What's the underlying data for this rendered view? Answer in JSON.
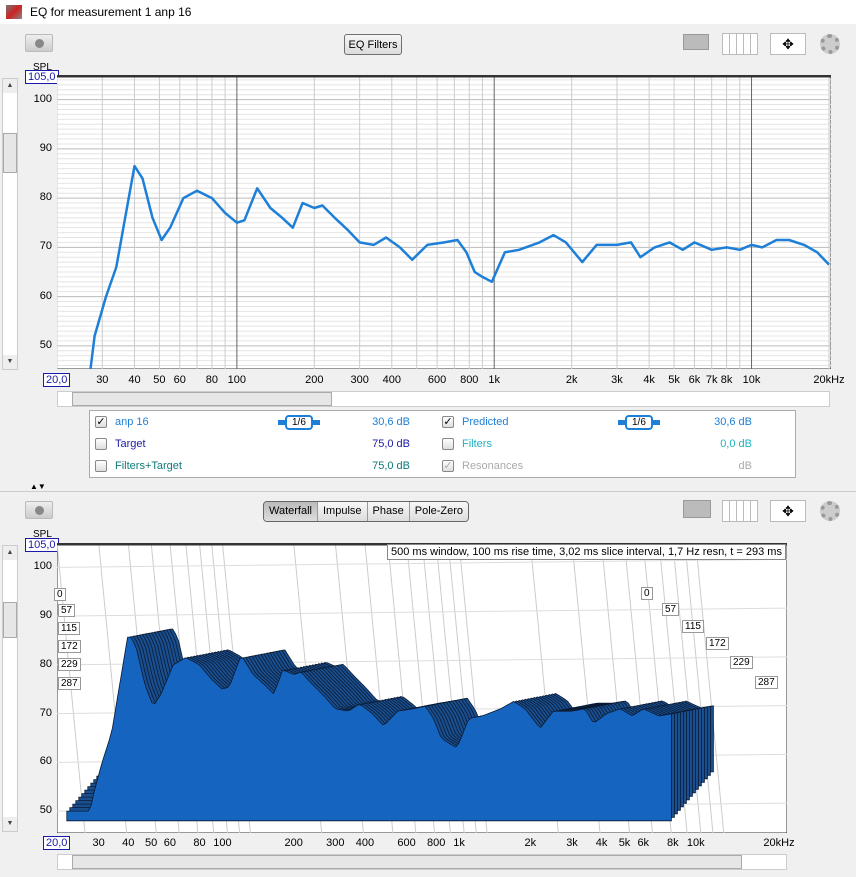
{
  "window": {
    "title": "EQ for measurement 1 anp 16"
  },
  "top_panel": {
    "eq_filters_button": "EQ Filters",
    "y_unit": "SPL",
    "y_max_value": "105,0",
    "x_min_value": "20,0",
    "y_ticks": [
      "100",
      "90",
      "80",
      "70",
      "60",
      "50"
    ],
    "x_ticks": [
      "30",
      "40",
      "50",
      "60",
      "80",
      "100",
      "200",
      "300",
      "400",
      "600",
      "800",
      "1k",
      "2k",
      "3k",
      "4k",
      "5k",
      "6k",
      "7k",
      "8k",
      "10k",
      "20kHz"
    ]
  },
  "legend": {
    "rows": [
      {
        "label": "anp 16",
        "checked": true,
        "smoothing": "1/6",
        "value": "30,6 dB",
        "color": "#1e7fd8"
      },
      {
        "label": "Target",
        "checked": false,
        "value": "75,0 dB",
        "color": "#1a1aa8"
      },
      {
        "label": "Filters+Target",
        "checked": false,
        "value": "75,0 dB",
        "color": "#0d7a7a"
      },
      {
        "label": "Predicted",
        "checked": true,
        "smoothing": "1/6",
        "value": "30,6 dB",
        "color": "#1e7fd8"
      },
      {
        "label": "Filters",
        "checked": false,
        "value": "0,0 dB",
        "color": "#20b0c0"
      },
      {
        "label": "Resonances",
        "checked": true,
        "disabled": true,
        "value": "dB",
        "color": "#aaaaaa"
      }
    ]
  },
  "bottom_panel": {
    "tabs": [
      {
        "label": "Waterfall",
        "active": true
      },
      {
        "label": "Impulse"
      },
      {
        "label": "Phase"
      },
      {
        "label": "Pole-Zero"
      }
    ],
    "y_unit": "SPL",
    "y_max_value": "105,0",
    "x_min_value": "20,0",
    "info": "500 ms window, 100 ms rise time, 3,02 ms slice interval, 1,7 Hz resn, t = 293 ms",
    "y_ticks": [
      "100",
      "90",
      "80",
      "70",
      "60",
      "50"
    ],
    "time_labels": [
      "0",
      "57",
      "115",
      "172",
      "229",
      "287"
    ],
    "x_ticks": [
      "30",
      "40",
      "50",
      "60",
      "80",
      "100",
      "200",
      "300",
      "400",
      "600",
      "800",
      "1k",
      "2k",
      "3k",
      "4k",
      "5k",
      "6k",
      "8k",
      "10k",
      "20kHz"
    ]
  },
  "chart_data": {
    "type": "line",
    "x_scale": "log",
    "xlim": [
      20,
      20000
    ],
    "ylim": [
      45.3,
      105
    ],
    "grid": true,
    "line_color": "#1e7fd8",
    "series": [
      {
        "name": "anp 16",
        "x": [
          27,
          28,
          31,
          34,
          38,
          40,
          43,
          47,
          51,
          55,
          62,
          70,
          80,
          90,
          100,
          107,
          120,
          135,
          150,
          165,
          180,
          200,
          215,
          240,
          270,
          300,
          340,
          380,
          430,
          480,
          550,
          640,
          720,
          780,
          840,
          900,
          980,
          1100,
          1250,
          1500,
          1700,
          1900,
          2200,
          2500,
          3000,
          3400,
          3700,
          4200,
          4800,
          5400,
          6000,
          7000,
          8000,
          9000,
          10000,
          11000,
          12500,
          14000,
          16000,
          18000,
          20000
        ],
        "y": [
          45.3,
          52,
          60,
          66,
          80,
          86.5,
          84,
          76,
          71.5,
          74,
          80,
          81.5,
          80,
          77,
          75,
          75.5,
          82,
          78,
          76,
          74,
          79,
          78,
          78.5,
          76,
          73.5,
          71,
          70.5,
          72,
          70,
          67.5,
          70.5,
          71,
          71.5,
          69,
          65,
          64,
          63,
          69,
          69.5,
          71,
          72.5,
          71,
          67,
          70.5,
          70.5,
          71,
          68,
          70,
          71,
          69.5,
          71,
          69.5,
          70,
          69.5,
          70.5,
          70,
          71.5,
          71.5,
          70.5,
          69,
          66.5
        ]
      }
    ]
  }
}
